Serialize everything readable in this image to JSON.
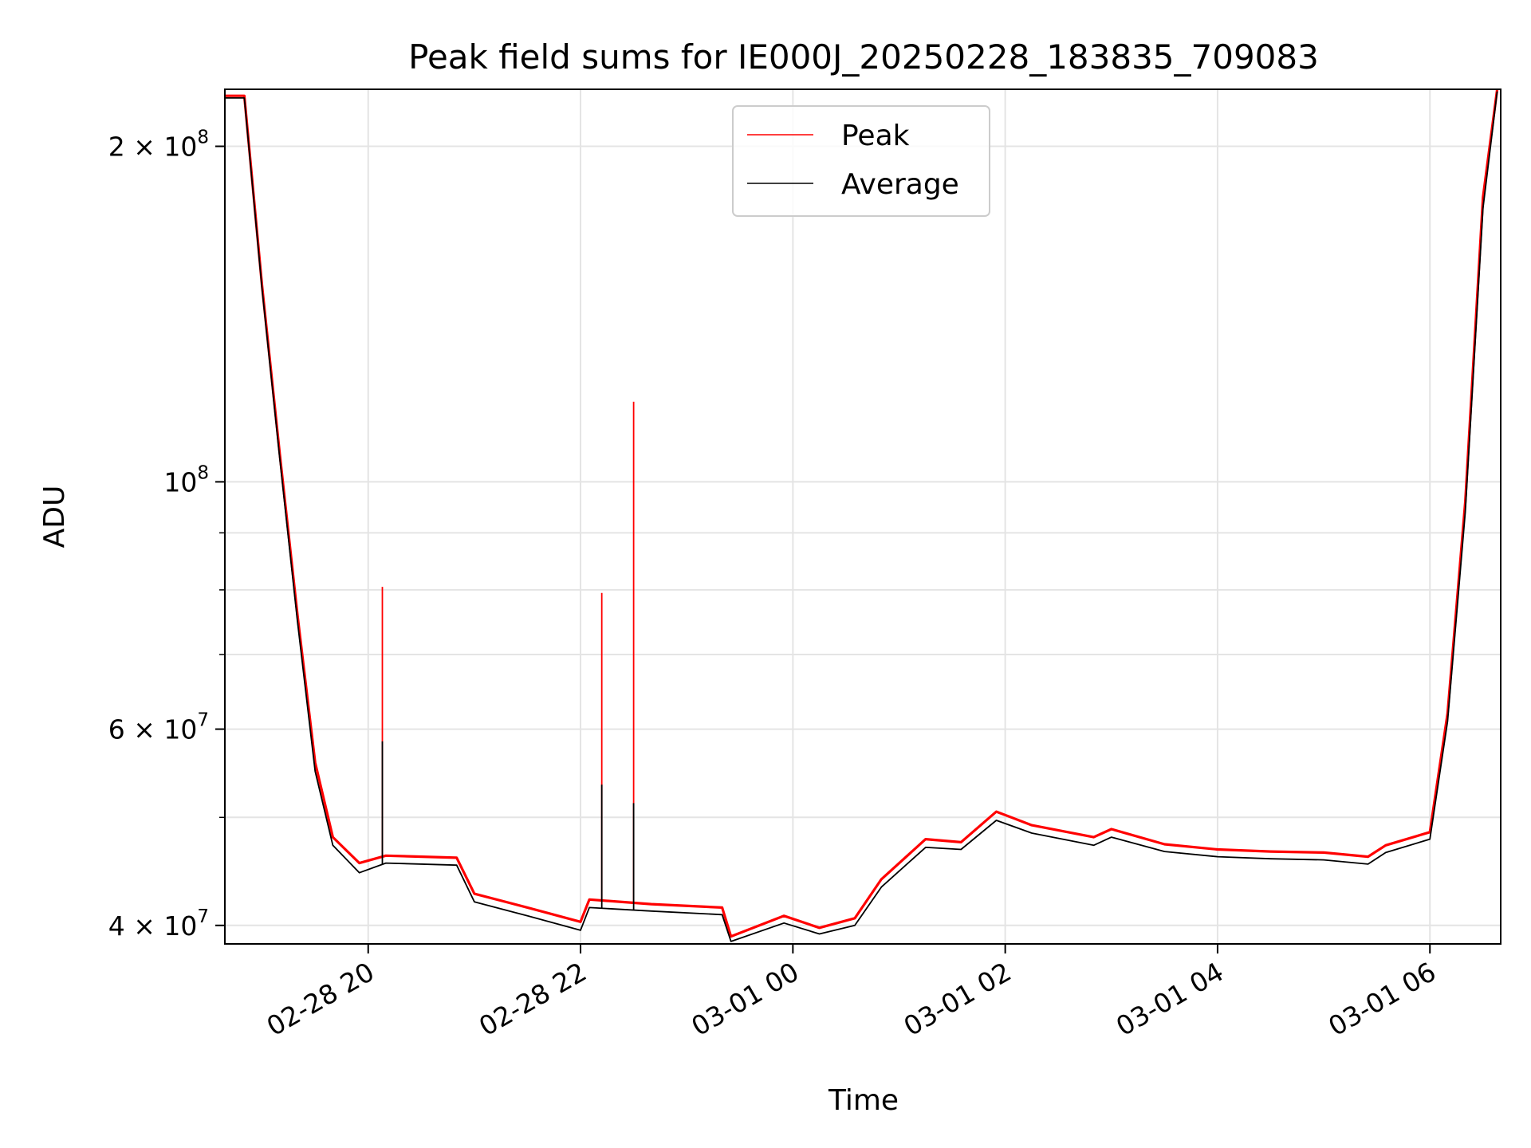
{
  "chart_data": {
    "type": "line",
    "title": "Peak field sums for IE000J_20250228_183835_709083",
    "xlabel": "Time",
    "ylabel": "ADU",
    "yscale": "log",
    "ylim": [
      38500000,
      225000000
    ],
    "xlim": [
      "2025-02-28 18:39",
      "2025-03-01 06:40"
    ],
    "grid": true,
    "legend_position": "top-center",
    "x_ticks": [
      {
        "t": "2025-02-28 20:00",
        "label": "02-28 20"
      },
      {
        "t": "2025-02-28 22:00",
        "label": "02-28 22"
      },
      {
        "t": "2025-03-01 00:00",
        "label": "03-01 00"
      },
      {
        "t": "2025-03-01 02:00",
        "label": "03-01 02"
      },
      {
        "t": "2025-03-01 04:00",
        "label": "03-01 04"
      },
      {
        "t": "2025-03-01 06:00",
        "label": "03-01 06"
      }
    ],
    "y_ticks": [
      {
        "v": 40000000,
        "base": "4 × 10",
        "exp": "7"
      },
      {
        "v": 60000000,
        "base": "6 × 10",
        "exp": "7"
      },
      {
        "v": 100000000,
        "base": "10",
        "exp": "8"
      },
      {
        "v": 200000000,
        "base": "2 × 10",
        "exp": "8"
      }
    ],
    "y_minor_ticks": [
      50000000,
      70000000,
      80000000,
      90000000
    ],
    "series": [
      {
        "name": "Peak",
        "color": "#ff0000",
        "points": [
          [
            "2025-02-28 18:39",
            222000000
          ],
          [
            "2025-02-28 18:50",
            222000000
          ],
          [
            "2025-02-28 19:00",
            150000000
          ],
          [
            "2025-02-28 19:10",
            106000000
          ],
          [
            "2025-02-28 19:20",
            76000000
          ],
          [
            "2025-02-28 19:30",
            56000000
          ],
          [
            "2025-02-28 19:40",
            48000000
          ],
          [
            "2025-02-28 19:55",
            45500000
          ],
          [
            "2025-02-28 20:10",
            46200000
          ],
          [
            "2025-02-28 20:50",
            46000000
          ],
          [
            "2025-02-28 21:00",
            42700000
          ],
          [
            "2025-02-28 21:30",
            41500000
          ],
          [
            "2025-02-28 22:00",
            40300000
          ],
          [
            "2025-02-28 22:05",
            42200000
          ],
          [
            "2025-02-28 22:40",
            41800000
          ],
          [
            "2025-02-28 23:20",
            41500000
          ],
          [
            "2025-02-28 23:25",
            39100000
          ],
          [
            "2025-02-28 23:55",
            40800000
          ],
          [
            "2025-03-01 00:15",
            39800000
          ],
          [
            "2025-03-01 00:35",
            40600000
          ],
          [
            "2025-03-01 00:50",
            44000000
          ],
          [
            "2025-03-01 01:15",
            47800000
          ],
          [
            "2025-03-01 01:35",
            47500000
          ],
          [
            "2025-03-01 01:55",
            50600000
          ],
          [
            "2025-03-01 02:15",
            49200000
          ],
          [
            "2025-03-01 02:50",
            48000000
          ],
          [
            "2025-03-01 03:00",
            48800000
          ],
          [
            "2025-03-01 03:30",
            47300000
          ],
          [
            "2025-03-01 04:00",
            46800000
          ],
          [
            "2025-03-01 04:30",
            46600000
          ],
          [
            "2025-03-01 05:00",
            46500000
          ],
          [
            "2025-03-01 05:25",
            46100000
          ],
          [
            "2025-03-01 05:35",
            47200000
          ],
          [
            "2025-03-01 06:00",
            48500000
          ],
          [
            "2025-03-01 06:10",
            62000000
          ],
          [
            "2025-03-01 06:20",
            96000000
          ],
          [
            "2025-03-01 06:30",
            180000000
          ],
          [
            "2025-03-01 06:38",
            225000000
          ]
        ],
        "spikes": [
          {
            "t": "2025-02-28 20:08",
            "value": 80500000
          },
          {
            "t": "2025-02-28 22:12",
            "value": 79500000
          },
          {
            "t": "2025-02-28 22:30",
            "value": 118000000
          }
        ]
      },
      {
        "name": "Average",
        "color": "#000000",
        "points": [
          [
            "2025-02-28 18:39",
            221000000
          ],
          [
            "2025-02-28 18:50",
            221000000
          ],
          [
            "2025-02-28 19:00",
            149000000
          ],
          [
            "2025-02-28 19:10",
            105000000
          ],
          [
            "2025-02-28 19:20",
            75000000
          ],
          [
            "2025-02-28 19:30",
            55000000
          ],
          [
            "2025-02-28 19:40",
            47200000
          ],
          [
            "2025-02-28 19:55",
            44600000
          ],
          [
            "2025-02-28 20:10",
            45500000
          ],
          [
            "2025-02-28 20:50",
            45300000
          ],
          [
            "2025-02-28 21:00",
            42000000
          ],
          [
            "2025-02-28 21:30",
            40800000
          ],
          [
            "2025-02-28 22:00",
            39600000
          ],
          [
            "2025-02-28 22:05",
            41500000
          ],
          [
            "2025-02-28 22:40",
            41200000
          ],
          [
            "2025-02-28 23:20",
            40900000
          ],
          [
            "2025-02-28 23:25",
            38700000
          ],
          [
            "2025-02-28 23:55",
            40200000
          ],
          [
            "2025-03-01 00:15",
            39300000
          ],
          [
            "2025-03-01 00:35",
            40000000
          ],
          [
            "2025-03-01 00:50",
            43300000
          ],
          [
            "2025-03-01 01:15",
            47000000
          ],
          [
            "2025-03-01 01:35",
            46800000
          ],
          [
            "2025-03-01 01:55",
            49700000
          ],
          [
            "2025-03-01 02:15",
            48400000
          ],
          [
            "2025-03-01 02:50",
            47200000
          ],
          [
            "2025-03-01 03:00",
            48000000
          ],
          [
            "2025-03-01 03:30",
            46600000
          ],
          [
            "2025-03-01 04:00",
            46100000
          ],
          [
            "2025-03-01 04:30",
            45900000
          ],
          [
            "2025-03-01 05:00",
            45800000
          ],
          [
            "2025-03-01 05:25",
            45400000
          ],
          [
            "2025-03-01 05:35",
            46500000
          ],
          [
            "2025-03-01 06:00",
            47800000
          ],
          [
            "2025-03-01 06:10",
            61000000
          ],
          [
            "2025-03-01 06:20",
            94000000
          ],
          [
            "2025-03-01 06:30",
            176000000
          ],
          [
            "2025-03-01 06:38",
            224000000
          ]
        ],
        "spikes": [
          {
            "t": "2025-02-28 20:08",
            "value": 58500000
          },
          {
            "t": "2025-02-28 22:12",
            "value": 53500000
          },
          {
            "t": "2025-02-28 22:30",
            "value": 51500000
          }
        ]
      }
    ]
  }
}
